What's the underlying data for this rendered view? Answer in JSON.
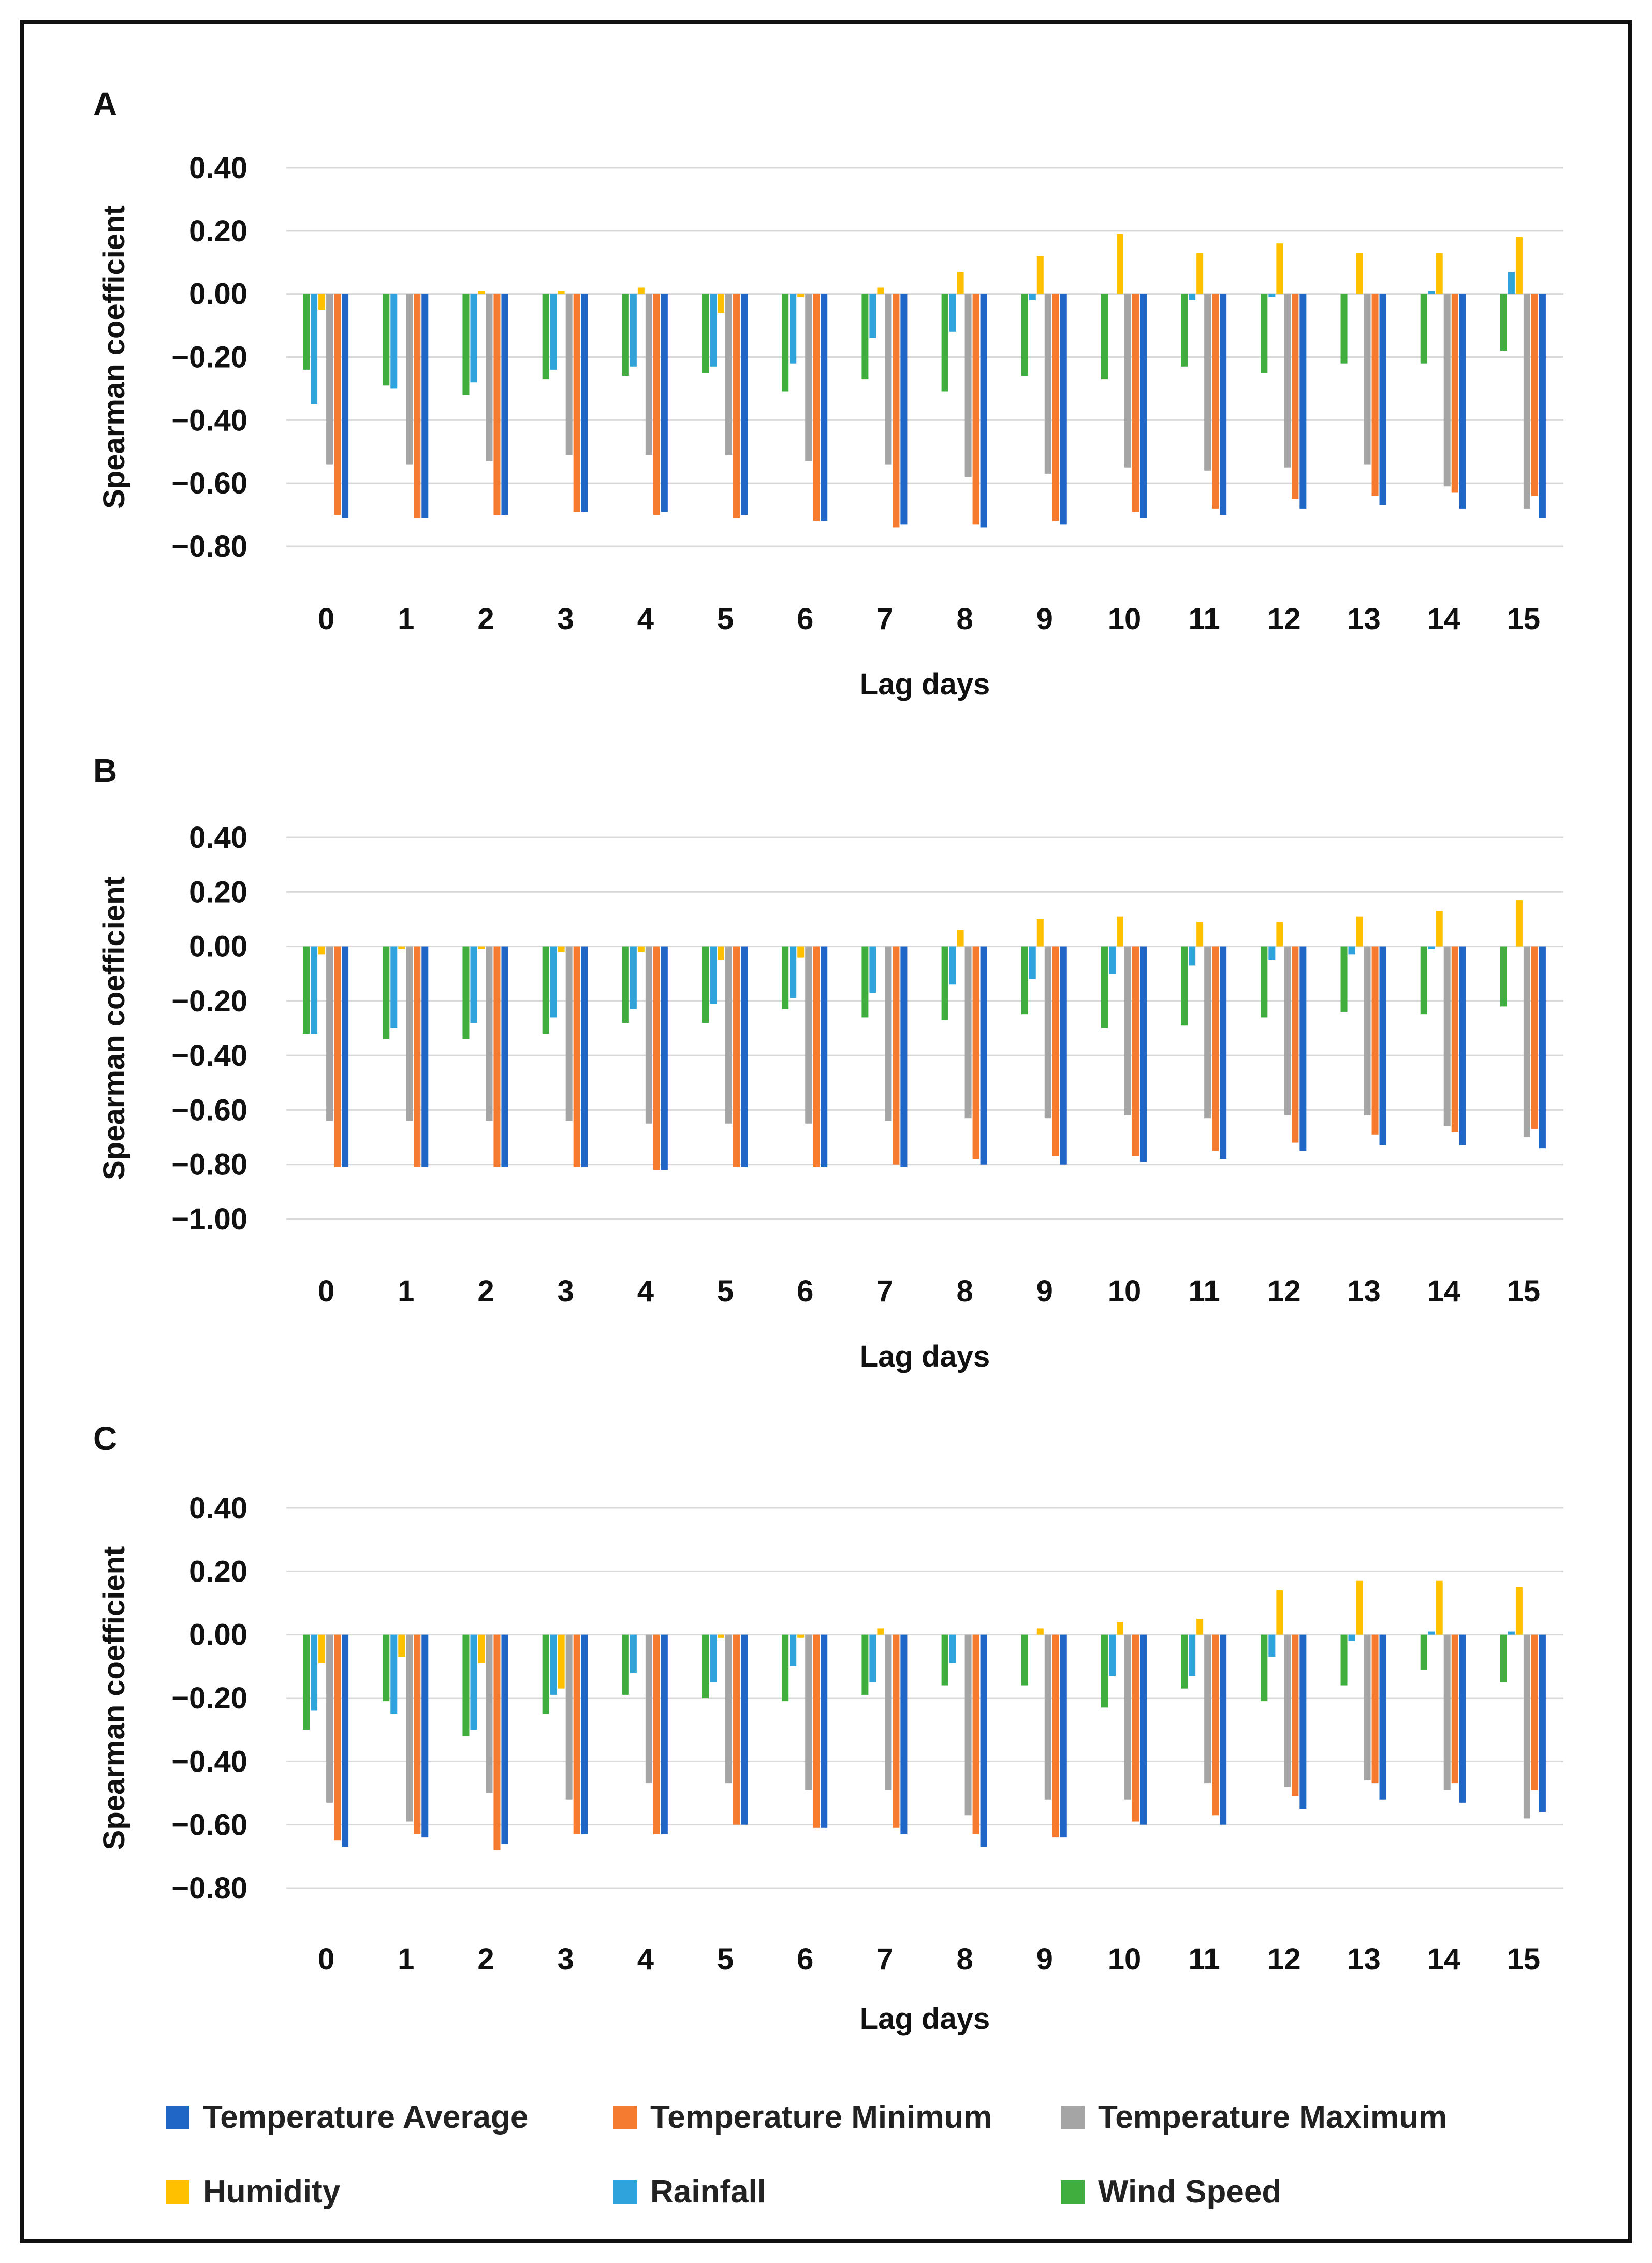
{
  "chart_data": [
    {
      "type": "bar",
      "panel": "A",
      "ylabel": "Spearman coefficient",
      "xlabel": "Lag days",
      "ylim": [
        -0.8,
        0.4
      ],
      "yticks": [
        "0.40",
        "0.20",
        "0.00",
        "−0.20",
        "−0.40",
        "−0.60",
        "−0.80"
      ],
      "ytick_values": [
        0.4,
        0.2,
        0.0,
        -0.2,
        -0.4,
        -0.6,
        -0.8
      ],
      "categories": [
        "0",
        "1",
        "2",
        "3",
        "4",
        "5",
        "6",
        "7",
        "8",
        "9",
        "10",
        "11",
        "12",
        "13",
        "14",
        "15"
      ],
      "series": [
        {
          "name": "Wind Speed",
          "values": [
            -0.24,
            -0.29,
            -0.32,
            -0.27,
            -0.26,
            -0.25,
            -0.31,
            -0.27,
            -0.31,
            -0.26,
            -0.27,
            -0.23,
            -0.25,
            -0.22,
            -0.22,
            -0.18
          ]
        },
        {
          "name": "Rainfall",
          "values": [
            -0.35,
            -0.3,
            -0.28,
            -0.24,
            -0.23,
            -0.23,
            -0.22,
            -0.14,
            -0.12,
            -0.02,
            0.0,
            -0.02,
            -0.01,
            0.0,
            0.01,
            0.07
          ]
        },
        {
          "name": "Humidity",
          "values": [
            -0.05,
            0.0,
            0.01,
            0.01,
            0.02,
            -0.06,
            -0.01,
            0.02,
            0.07,
            0.12,
            0.19,
            0.13,
            0.16,
            0.13,
            0.13,
            0.18
          ]
        },
        {
          "name": "Temperature Maximum",
          "values": [
            -0.54,
            -0.54,
            -0.53,
            -0.51,
            -0.51,
            -0.51,
            -0.53,
            -0.54,
            -0.58,
            -0.57,
            -0.55,
            -0.56,
            -0.55,
            -0.54,
            -0.61,
            -0.68
          ]
        },
        {
          "name": "Temperature Minimum",
          "values": [
            -0.7,
            -0.71,
            -0.7,
            -0.69,
            -0.7,
            -0.71,
            -0.72,
            -0.74,
            -0.73,
            -0.72,
            -0.69,
            -0.68,
            -0.65,
            -0.64,
            -0.63,
            -0.64
          ]
        },
        {
          "name": "Temperature Average",
          "values": [
            -0.71,
            -0.71,
            -0.7,
            -0.69,
            -0.69,
            -0.7,
            -0.72,
            -0.73,
            -0.74,
            -0.73,
            -0.71,
            -0.7,
            -0.68,
            -0.67,
            -0.68,
            -0.71
          ]
        }
      ]
    },
    {
      "type": "bar",
      "panel": "B",
      "ylabel": "Spearman coefficient",
      "xlabel": "Lag days",
      "ylim": [
        -1.0,
        0.4
      ],
      "yticks": [
        "0.40",
        "0.20",
        "0.00",
        "−0.20",
        "−0.40",
        "−0.60",
        "−0.80",
        "−1.00"
      ],
      "ytick_values": [
        0.4,
        0.2,
        0.0,
        -0.2,
        -0.4,
        -0.6,
        -0.8,
        -1.0
      ],
      "categories": [
        "0",
        "1",
        "2",
        "3",
        "4",
        "5",
        "6",
        "7",
        "8",
        "9",
        "10",
        "11",
        "12",
        "13",
        "14",
        "15"
      ],
      "series": [
        {
          "name": "Wind Speed",
          "values": [
            -0.32,
            -0.34,
            -0.34,
            -0.32,
            -0.28,
            -0.28,
            -0.23,
            -0.26,
            -0.27,
            -0.25,
            -0.3,
            -0.29,
            -0.26,
            -0.24,
            -0.25,
            -0.22
          ]
        },
        {
          "name": "Rainfall",
          "values": [
            -0.32,
            -0.3,
            -0.28,
            -0.26,
            -0.23,
            -0.21,
            -0.19,
            -0.17,
            -0.14,
            -0.12,
            -0.1,
            -0.07,
            -0.05,
            -0.03,
            -0.01,
            0.0
          ]
        },
        {
          "name": "Humidity",
          "values": [
            -0.03,
            -0.01,
            -0.01,
            -0.02,
            -0.02,
            -0.05,
            -0.04,
            0.0,
            0.06,
            0.1,
            0.11,
            0.09,
            0.09,
            0.11,
            0.13,
            0.17
          ]
        },
        {
          "name": "Temperature Maximum",
          "values": [
            -0.64,
            -0.64,
            -0.64,
            -0.64,
            -0.65,
            -0.65,
            -0.65,
            -0.64,
            -0.63,
            -0.63,
            -0.62,
            -0.63,
            -0.62,
            -0.62,
            -0.66,
            -0.7
          ]
        },
        {
          "name": "Temperature Minimum",
          "values": [
            -0.81,
            -0.81,
            -0.81,
            -0.81,
            -0.82,
            -0.81,
            -0.81,
            -0.8,
            -0.78,
            -0.77,
            -0.77,
            -0.75,
            -0.72,
            -0.69,
            -0.68,
            -0.67
          ]
        },
        {
          "name": "Temperature Average",
          "values": [
            -0.81,
            -0.81,
            -0.81,
            -0.81,
            -0.82,
            -0.81,
            -0.81,
            -0.81,
            -0.8,
            -0.8,
            -0.79,
            -0.78,
            -0.75,
            -0.73,
            -0.73,
            -0.74
          ]
        }
      ]
    },
    {
      "type": "bar",
      "panel": "C",
      "ylabel": "Spearman coefficient",
      "xlabel": "Lag days",
      "ylim": [
        -0.8,
        0.4
      ],
      "yticks": [
        "0.40",
        "0.20",
        "0.00",
        "−0.20",
        "−0.40",
        "−0.60",
        "−0.80"
      ],
      "ytick_values": [
        0.4,
        0.2,
        0.0,
        -0.2,
        -0.4,
        -0.6,
        -0.8
      ],
      "categories": [
        "0",
        "1",
        "2",
        "3",
        "4",
        "5",
        "6",
        "7",
        "8",
        "9",
        "10",
        "11",
        "12",
        "13",
        "14",
        "15"
      ],
      "series": [
        {
          "name": "Wind Speed",
          "values": [
            -0.3,
            -0.21,
            -0.32,
            -0.25,
            -0.19,
            -0.2,
            -0.21,
            -0.19,
            -0.16,
            -0.16,
            -0.23,
            -0.17,
            -0.21,
            -0.16,
            -0.11,
            -0.15
          ]
        },
        {
          "name": "Rainfall",
          "values": [
            -0.24,
            -0.25,
            -0.3,
            -0.19,
            -0.12,
            -0.15,
            -0.1,
            -0.15,
            -0.09,
            0.0,
            -0.13,
            -0.13,
            -0.07,
            -0.02,
            0.01,
            0.01
          ]
        },
        {
          "name": "Humidity",
          "values": [
            -0.09,
            -0.07,
            -0.09,
            -0.17,
            0.0,
            -0.01,
            -0.01,
            0.02,
            0.0,
            0.02,
            0.04,
            0.05,
            0.14,
            0.17,
            0.17,
            0.15
          ]
        },
        {
          "name": "Temperature Maximum",
          "values": [
            -0.53,
            -0.59,
            -0.5,
            -0.52,
            -0.47,
            -0.47,
            -0.49,
            -0.49,
            -0.57,
            -0.52,
            -0.52,
            -0.47,
            -0.48,
            -0.46,
            -0.49,
            -0.58
          ]
        },
        {
          "name": "Temperature Minimum",
          "values": [
            -0.65,
            -0.63,
            -0.68,
            -0.63,
            -0.63,
            -0.6,
            -0.61,
            -0.61,
            -0.63,
            -0.64,
            -0.59,
            -0.57,
            -0.51,
            -0.47,
            -0.47,
            -0.49
          ]
        },
        {
          "name": "Temperature Average",
          "values": [
            -0.67,
            -0.64,
            -0.66,
            -0.63,
            -0.63,
            -0.6,
            -0.61,
            -0.63,
            -0.67,
            -0.64,
            -0.6,
            -0.6,
            -0.55,
            -0.52,
            -0.53,
            -0.56
          ]
        }
      ]
    }
  ],
  "legend": [
    {
      "name": "Temperature Average",
      "color": "#1F66C6"
    },
    {
      "name": "Temperature Minimum",
      "color": "#F47B2F"
    },
    {
      "name": "Temperature Maximum",
      "color": "#A5A5A5"
    },
    {
      "name": "Humidity",
      "color": "#FFC000"
    },
    {
      "name": "Rainfall",
      "color": "#2EA3DC"
    },
    {
      "name": "Wind Speed",
      "color": "#3FAE3F"
    }
  ]
}
